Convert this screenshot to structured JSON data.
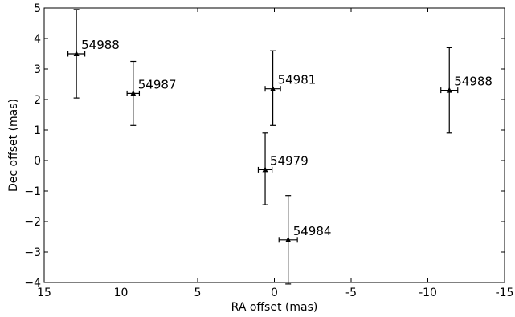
{
  "chart_data": {
    "type": "scatter",
    "title": "",
    "xlabel": "RA offset (mas)",
    "ylabel": "Dec offset (mas)",
    "xlim": [
      15,
      -15
    ],
    "ylim": [
      -4,
      5
    ],
    "x_reversed": true,
    "grid": false,
    "marker": "triangle",
    "x_ticks": [
      15,
      10,
      5,
      0,
      -5,
      -10,
      -15
    ],
    "x_tick_labels": [
      "15",
      "10",
      "5",
      "0",
      "-5",
      "-10",
      "-15"
    ],
    "y_ticks": [
      -4,
      -3,
      -2,
      -1,
      0,
      1,
      2,
      3,
      4,
      5
    ],
    "y_tick_labels": [
      "−4",
      "−3",
      "−2",
      "−1",
      "0",
      "1",
      "2",
      "3",
      "4",
      "5"
    ],
    "points": [
      {
        "label": "54988",
        "x": 12.9,
        "y": 3.5,
        "xerr": 0.55,
        "yerr_low": 1.45,
        "yerr_high": 1.45
      },
      {
        "label": "54987",
        "x": 9.2,
        "y": 2.2,
        "xerr": 0.4,
        "yerr_low": 1.05,
        "yerr_high": 1.05
      },
      {
        "label": "54981",
        "x": 0.1,
        "y": 2.35,
        "xerr": 0.5,
        "yerr_low": 1.2,
        "yerr_high": 1.25
      },
      {
        "label": "54988",
        "x": -11.4,
        "y": 2.3,
        "xerr": 0.55,
        "yerr_low": 1.4,
        "yerr_high": 1.4
      },
      {
        "label": "54979",
        "x": 0.6,
        "y": -0.3,
        "xerr": 0.45,
        "yerr_low": 1.15,
        "yerr_high": 1.2
      },
      {
        "label": "54984",
        "x": -0.9,
        "y": -2.6,
        "xerr": 0.6,
        "yerr_low": 1.45,
        "yerr_high": 1.45
      }
    ]
  }
}
